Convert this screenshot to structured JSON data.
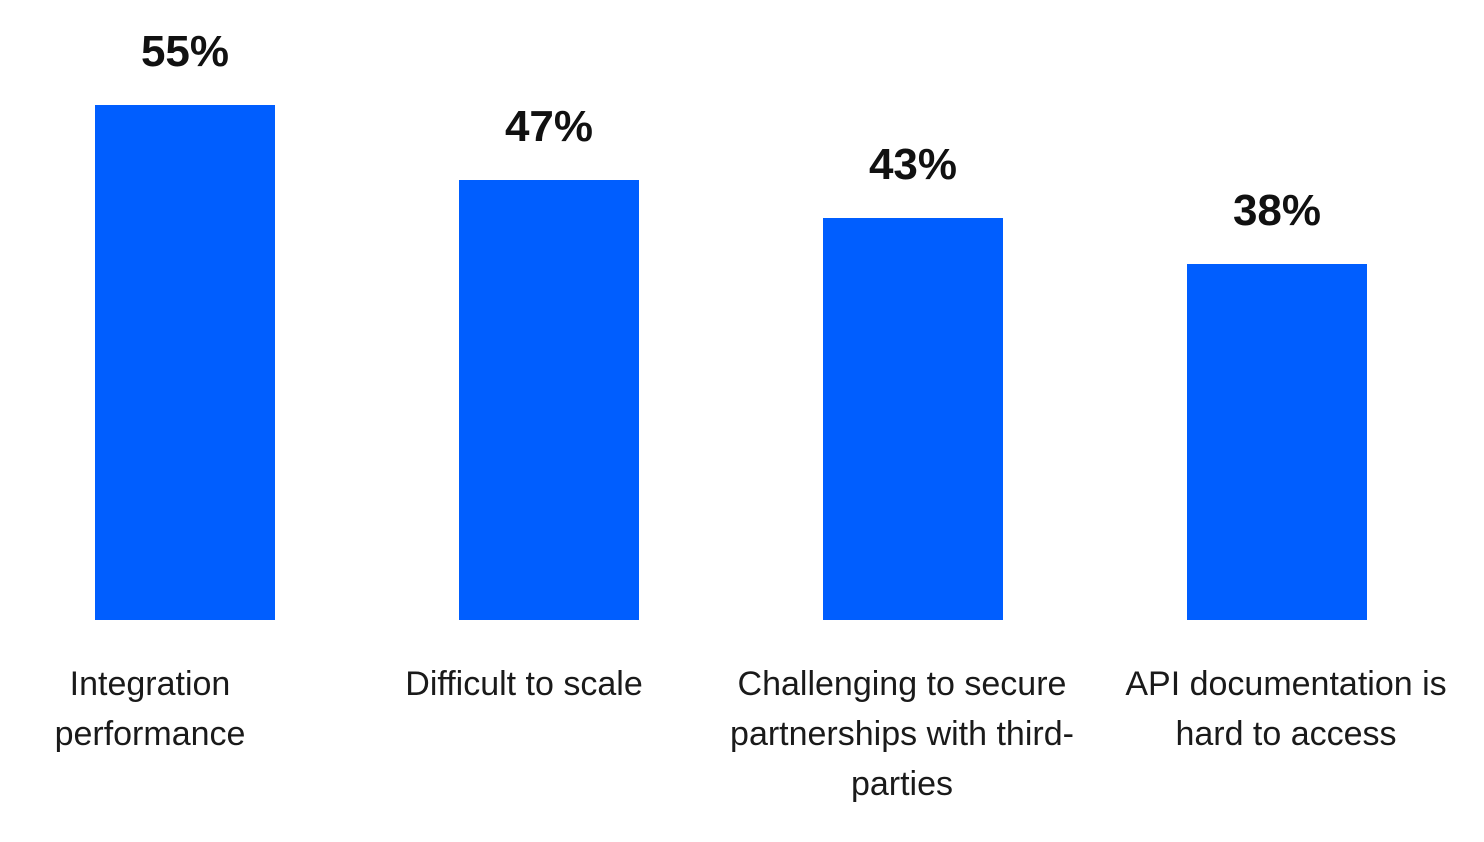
{
  "chart_data": {
    "type": "bar",
    "categories": [
      "Integration performance",
      "Difficult to scale",
      "Challenging to secure partnerships with third-parties",
      "API documentation is hard to access"
    ],
    "values": [
      55,
      47,
      43,
      38
    ],
    "value_labels": [
      "55%",
      "47%",
      "43%",
      "38%"
    ],
    "color": "#005eff"
  }
}
